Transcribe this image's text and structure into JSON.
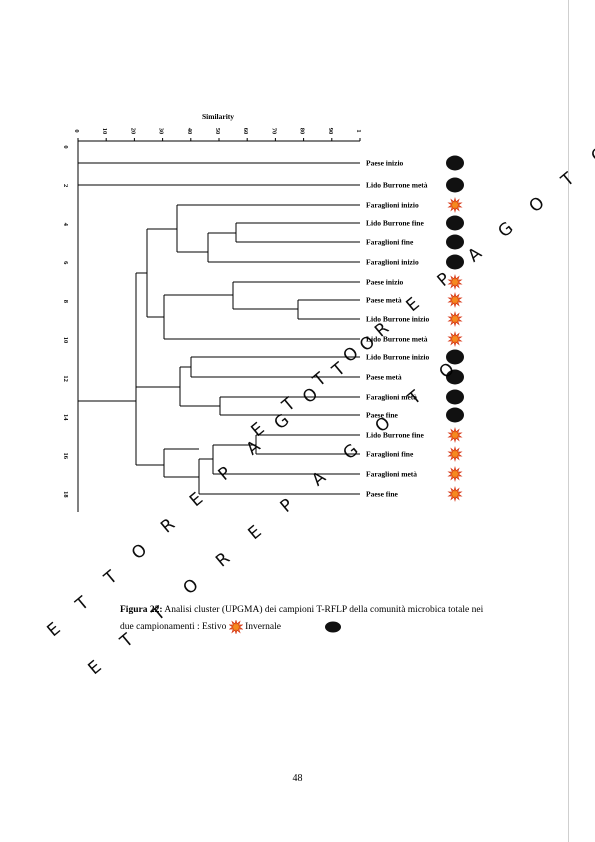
{
  "axis": {
    "title": "Similarity",
    "ticks": [
      "0",
      "10",
      "20",
      "30",
      "40",
      "50",
      "60",
      "70",
      "80",
      "90",
      "1"
    ]
  },
  "left_ticks": [
    "0",
    "2",
    "4",
    "6",
    "8",
    "10",
    "12",
    "14",
    "16",
    "18"
  ],
  "samples": [
    {
      "label": "Paese inizio",
      "season": "inverno"
    },
    {
      "label": "Lido Burrone metà",
      "season": "inverno"
    },
    {
      "label": "Faraglioni inizio",
      "season": "estivo"
    },
    {
      "label": "Lido Burrone fine",
      "season": "inverno"
    },
    {
      "label": "Faraglioni fine",
      "season": "inverno"
    },
    {
      "label": "Faraglioni inizio",
      "season": "inverno"
    },
    {
      "label": "Paese inizio",
      "season": "estivo"
    },
    {
      "label": "Paese metà",
      "season": "estivo"
    },
    {
      "label": "Lido Burrone inizio",
      "season": "estivo"
    },
    {
      "label": "Lido Burrone metà",
      "season": "estivo"
    },
    {
      "label": "Lido Burrone inizio",
      "season": "inverno"
    },
    {
      "label": "Paese metà",
      "season": "inverno"
    },
    {
      "label": "Faraglioni metà",
      "season": "inverno"
    },
    {
      "label": "Paese fine",
      "season": "inverno"
    },
    {
      "label": "Lido Burrone fine",
      "season": "estivo"
    },
    {
      "label": "Faraglioni fine",
      "season": "estivo"
    },
    {
      "label": "Faraglioni metà",
      "season": "estivo"
    },
    {
      "label": "Paese fine",
      "season": "estivo"
    }
  ],
  "caption": {
    "figure": "Figura 22:",
    "text1": " Analisi cluster (UPGMA) dei campioni T-RFLP della comunità microbica totale nei due campionamenti : Estivo",
    "inverno": "Invernale"
  },
  "watermark": "ETTORE PAGOTO",
  "page_number": "48",
  "colors": {
    "estivo_fill": "#f58a1f",
    "estivo_outer": "#d6391a",
    "inverno": "#111111"
  }
}
